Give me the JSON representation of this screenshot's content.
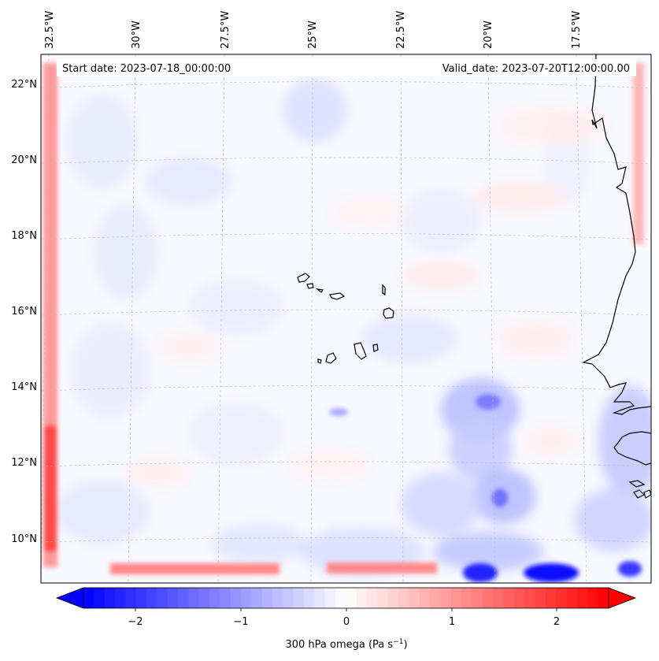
{
  "start_label": "Start date: 2023-07-18_00:00:00",
  "valid_label": "Valid_date: 2023-07-20T12:00:00.00",
  "longitude_labels": [
    "32.5°W",
    "30°W",
    "27.5°W",
    "25°W",
    "22.5°W",
    "20°W",
    "17.5°W"
  ],
  "latitude_labels": [
    "22°N",
    "20°N",
    "18°N",
    "16°N",
    "14°N",
    "12°N",
    "10°N"
  ],
  "colorbar": {
    "tick_labels": [
      "−2",
      "−1",
      "0",
      "1",
      "2"
    ],
    "title": "300 hPa omega (Pa s",
    "title_sup": "−1",
    "title_end": ")",
    "min": -2.7,
    "max": 2.7,
    "low_color": "#0000ff",
    "mid_color": "#ffffff",
    "high_color": "#ff0000"
  }
}
